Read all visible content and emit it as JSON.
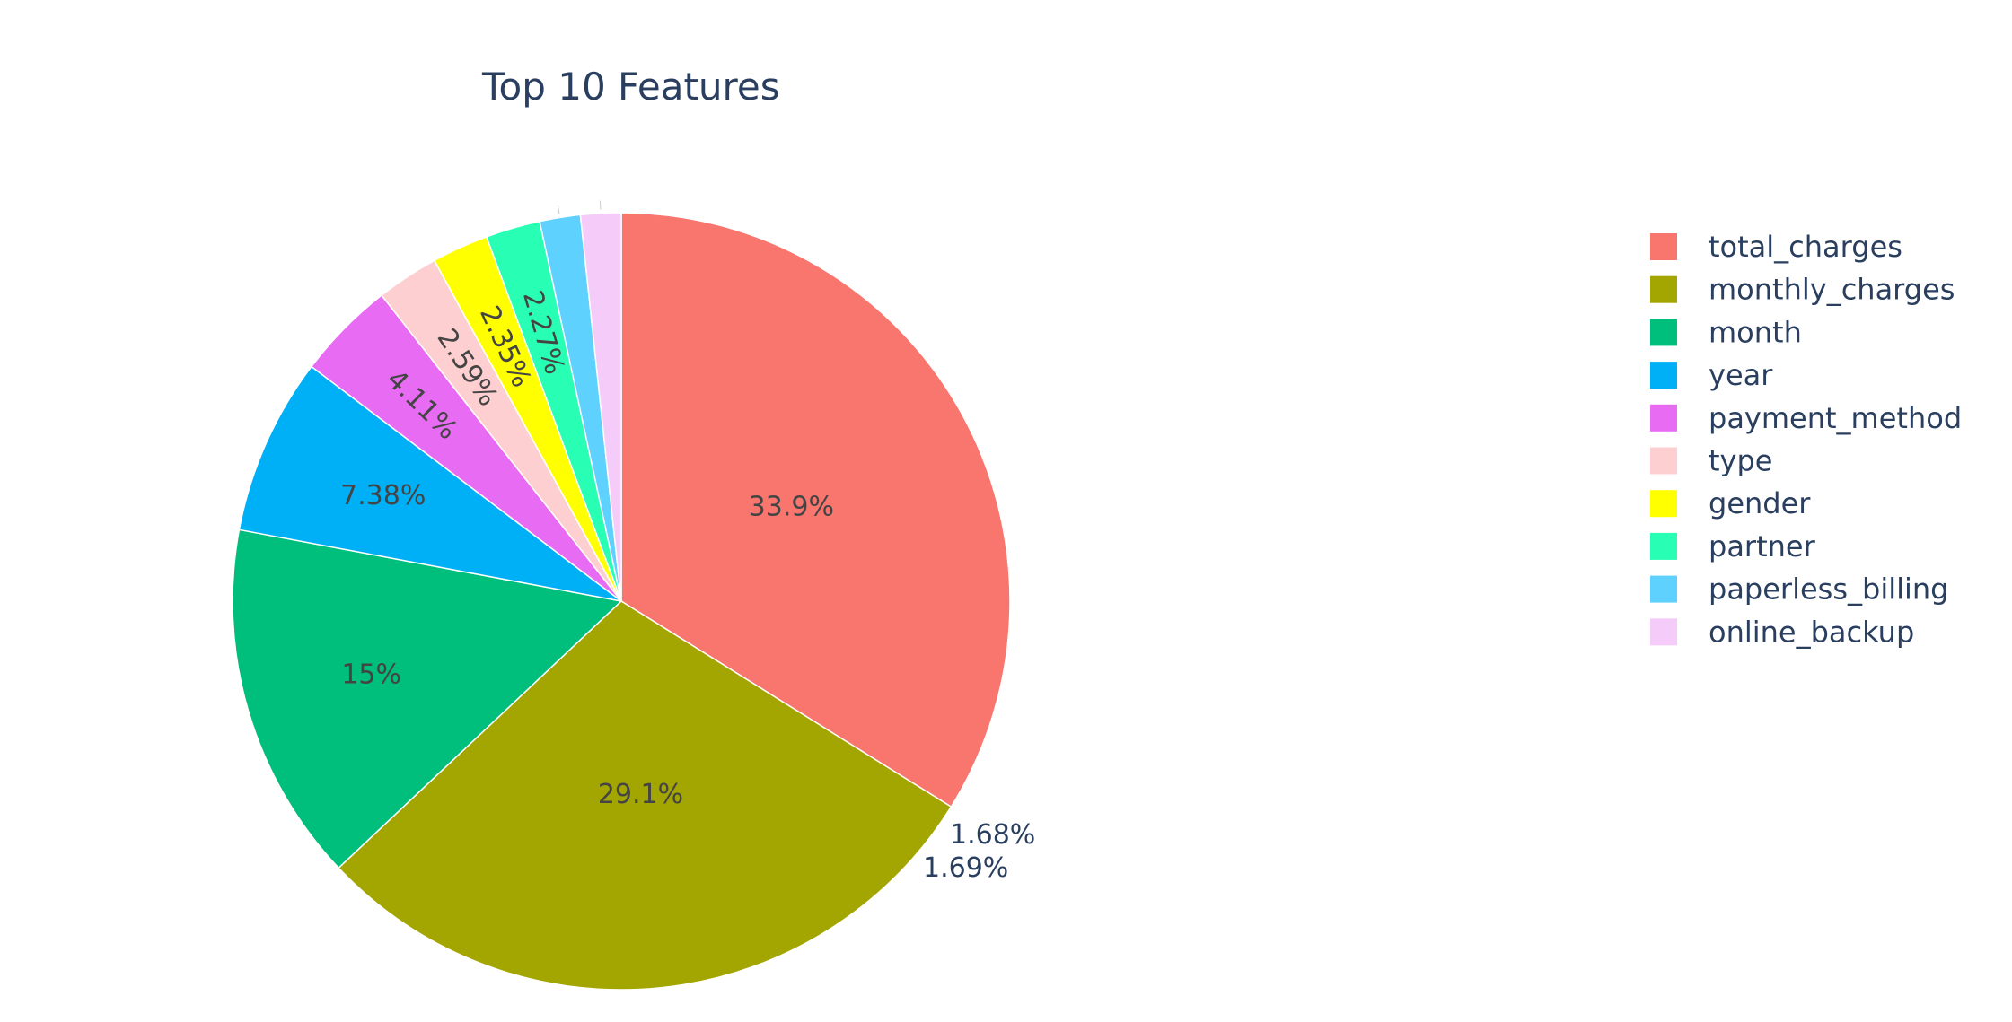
{
  "chart_data": {
    "type": "pie",
    "title": "Top 10 Features",
    "slices": [
      {
        "label": "total_charges",
        "value": 33.9,
        "text": "33.9%",
        "color": "#F8766D"
      },
      {
        "label": "monthly_charges",
        "value": 29.1,
        "text": "29.1%",
        "color": "#A3A500"
      },
      {
        "label": "month",
        "value": 15.0,
        "text": "15%",
        "color": "#00BF7D"
      },
      {
        "label": "year",
        "value": 7.38,
        "text": "7.38%",
        "color": "#00B0F6"
      },
      {
        "label": "payment_method",
        "value": 4.11,
        "text": "4.11%",
        "color": "#E76BF3"
      },
      {
        "label": "type",
        "value": 2.59,
        "text": "2.59%",
        "color": "#FDCFD0"
      },
      {
        "label": "gender",
        "value": 2.35,
        "text": "2.35%",
        "color": "#FFFF00"
      },
      {
        "label": "partner",
        "value": 2.27,
        "text": "2.27%",
        "color": "#28FFB4"
      },
      {
        "label": "paperless_billing",
        "value": 1.69,
        "text": "1.69%",
        "color": "#5FD1FF"
      },
      {
        "label": "online_backup",
        "value": 1.68,
        "text": "1.68%",
        "color": "#F5CBF9"
      }
    ],
    "direction": "clockwise",
    "start_angle": "12 o'clock",
    "legend_position": "right"
  }
}
